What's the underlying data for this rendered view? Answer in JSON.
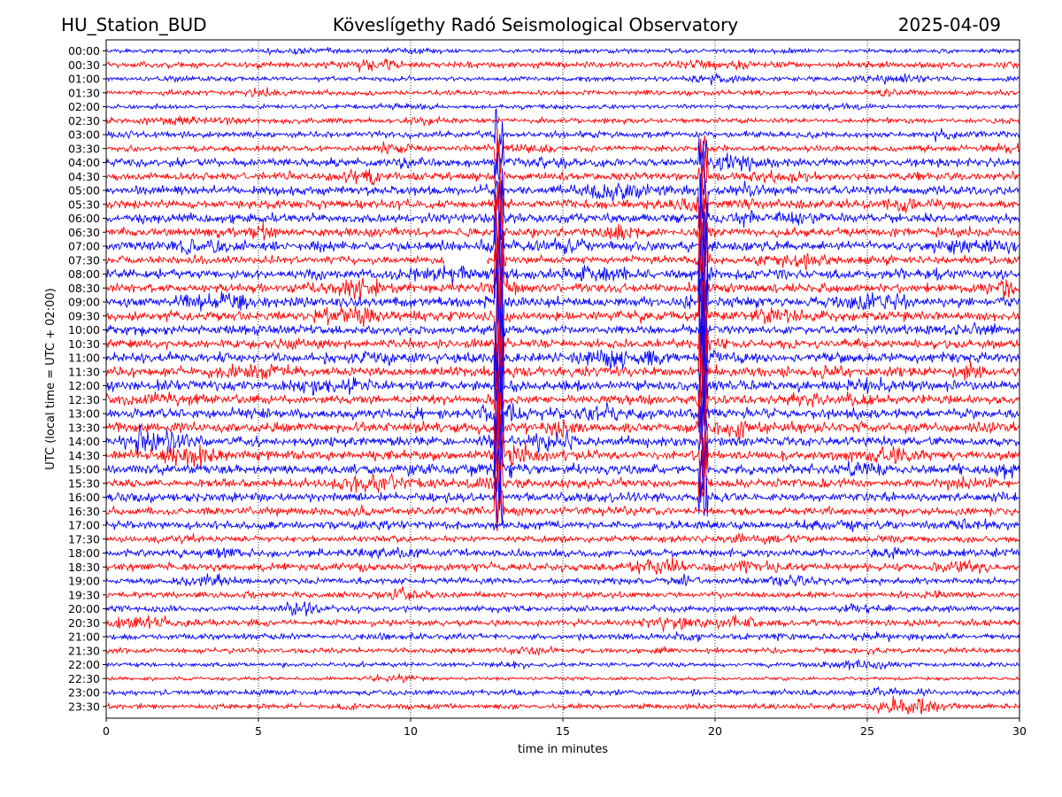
{
  "header": {
    "station": "HU_Station_BUD",
    "observatory": "Köveslígethy Radó Seismological Observatory",
    "date": "2025-04-09"
  },
  "chart_data": {
    "type": "line",
    "title": "Köveslígethy Radó Seismological Observatory",
    "xlabel": "time in minutes",
    "ylabel": "UTC (local time = UTC + 02:00)",
    "xlim": [
      0,
      30
    ],
    "x_ticks": [
      0,
      5,
      10,
      15,
      20,
      25,
      30
    ],
    "x_grid": "dotted vertical at each x tick",
    "row_labels": [
      "00:00",
      "00:30",
      "01:00",
      "01:30",
      "02:00",
      "02:30",
      "03:00",
      "03:30",
      "04:00",
      "04:30",
      "05:00",
      "05:30",
      "06:00",
      "06:30",
      "07:00",
      "07:30",
      "08:00",
      "08:30",
      "09:00",
      "09:30",
      "10:00",
      "10:30",
      "11:00",
      "11:30",
      "12:00",
      "12:30",
      "13:00",
      "13:30",
      "14:00",
      "14:30",
      "15:00",
      "15:30",
      "16:00",
      "16:30",
      "17:00",
      "17:30",
      "18:00",
      "18:30",
      "19:00",
      "19:30",
      "20:00",
      "20:30",
      "21:00",
      "21:30",
      "22:00",
      "22:30",
      "23:00",
      "23:30"
    ],
    "trace_colors": [
      "#0000ff",
      "#ff0000"
    ],
    "noise_amplitude": [
      0.25,
      0.35,
      0.25,
      0.3,
      0.25,
      0.3,
      0.35,
      0.35,
      0.45,
      0.45,
      0.5,
      0.5,
      0.55,
      0.5,
      0.55,
      0.45,
      0.55,
      0.5,
      0.55,
      0.55,
      0.5,
      0.5,
      0.55,
      0.55,
      0.55,
      0.5,
      0.55,
      0.55,
      0.55,
      0.55,
      0.55,
      0.5,
      0.5,
      0.45,
      0.45,
      0.35,
      0.45,
      0.45,
      0.35,
      0.35,
      0.35,
      0.35,
      0.35,
      0.3,
      0.25,
      0.2,
      0.3,
      0.3
    ],
    "events": [
      {
        "minute": 12.9,
        "from_row": "03:00",
        "to_row": "16:30"
      },
      {
        "minute": 19.6,
        "from_row": "03:30",
        "to_row": "16:00"
      }
    ],
    "gap": {
      "row": "07:30",
      "from_minute": 11.1,
      "to_minute": 12.5
    }
  }
}
